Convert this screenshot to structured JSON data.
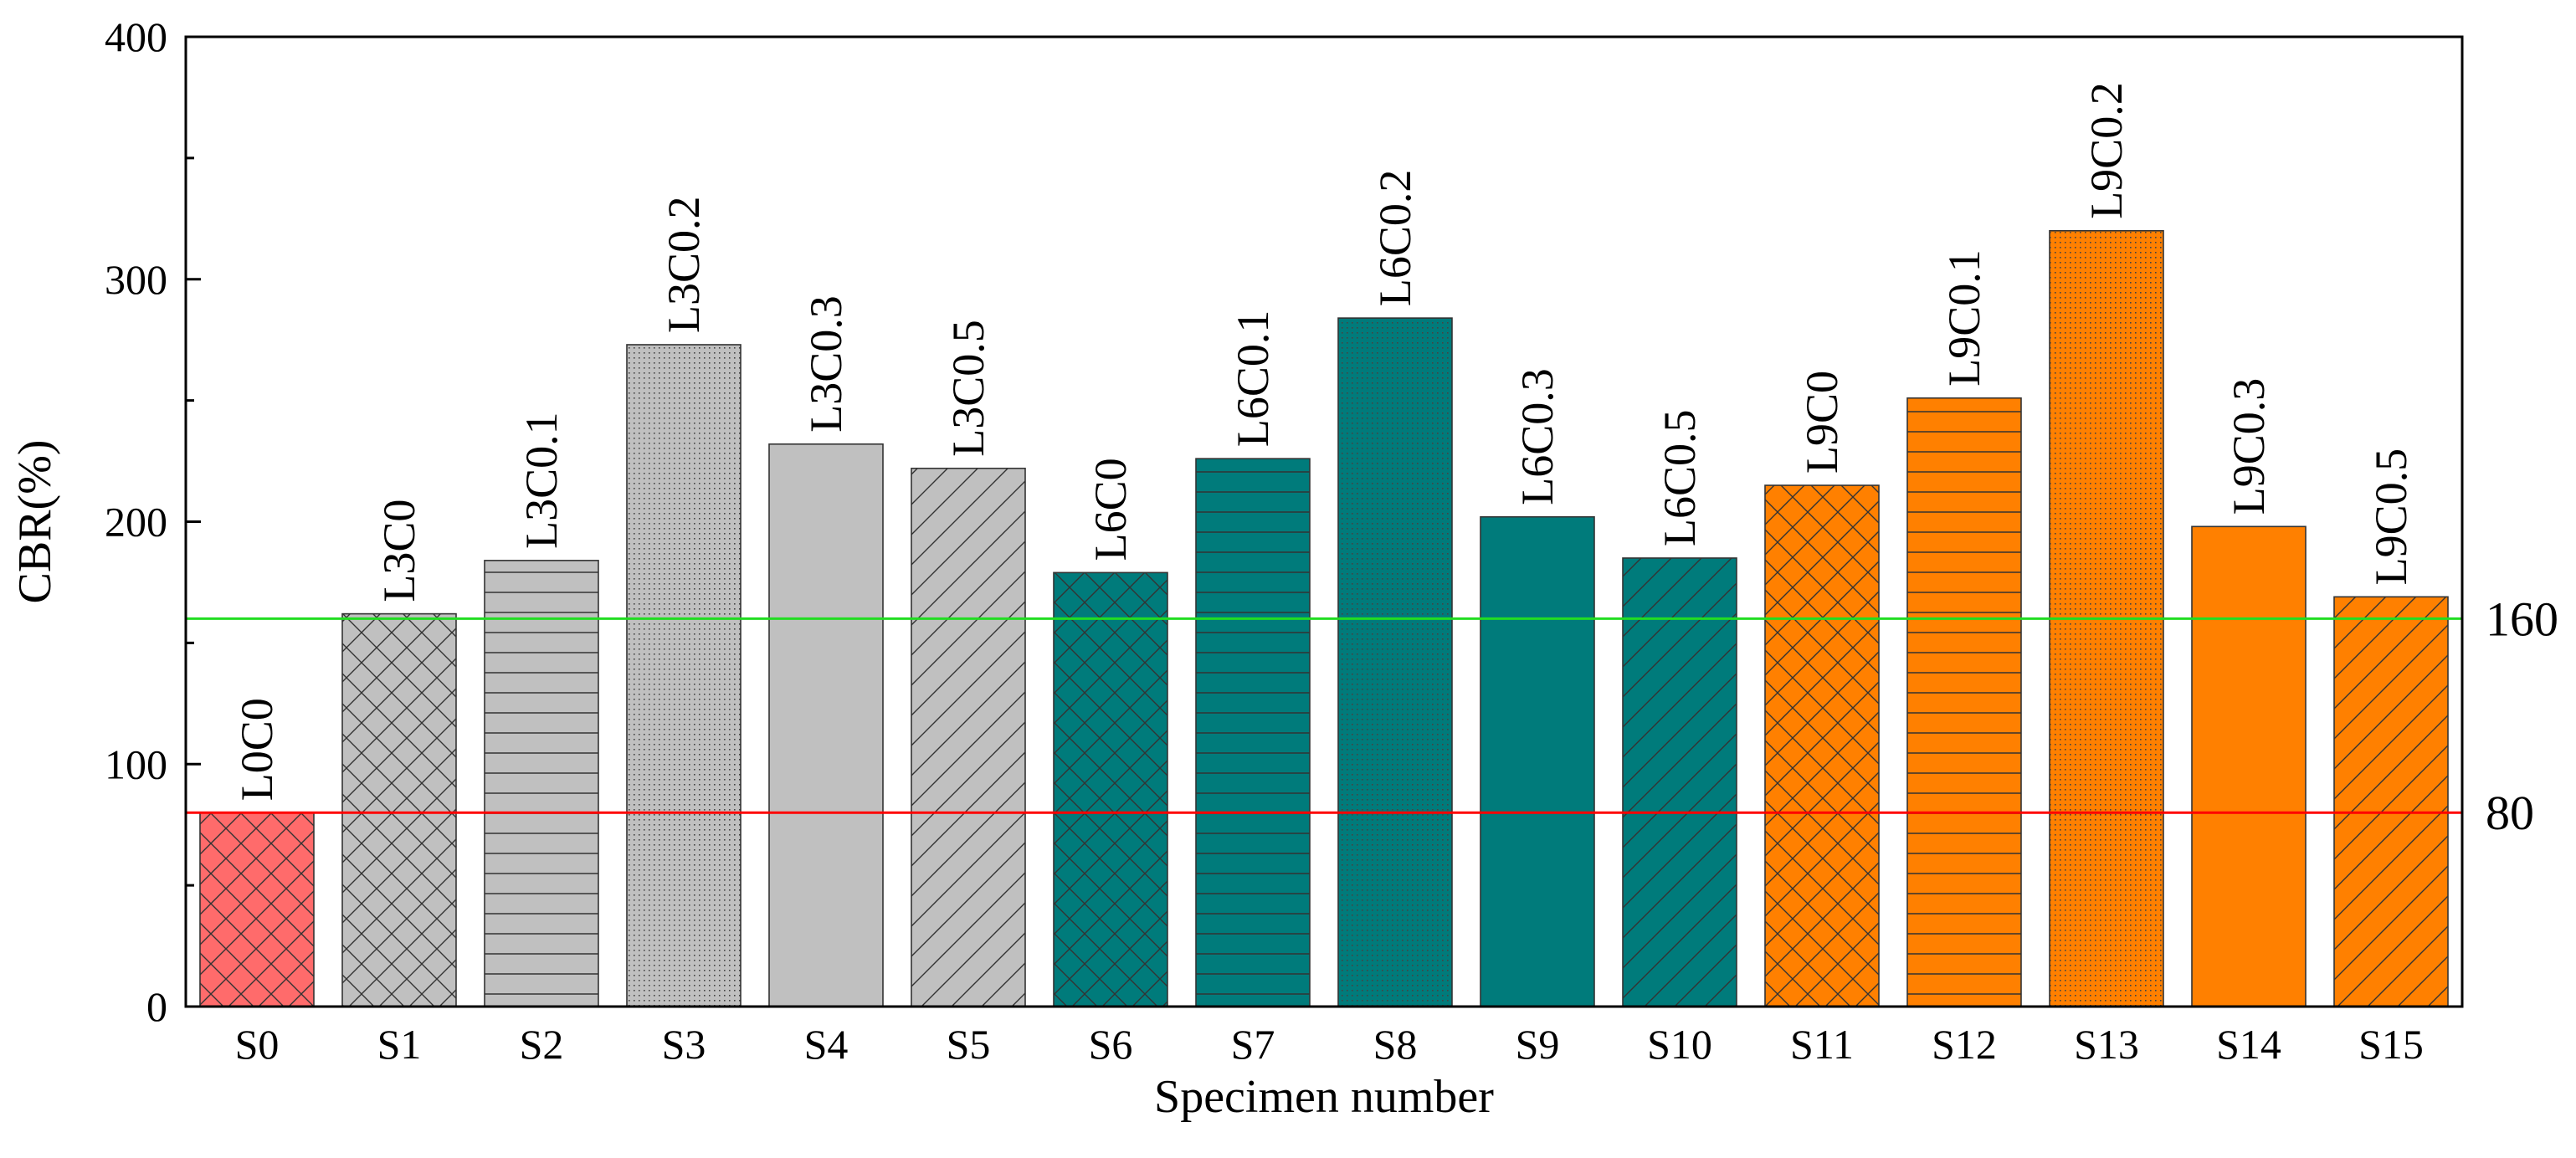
{
  "chart_data": {
    "type": "bar",
    "xlabel": "Specimen number",
    "ylabel": "CBR(%)",
    "ylim": [
      0,
      400
    ],
    "yticks": [
      0,
      100,
      200,
      300,
      400
    ],
    "grid": false,
    "categories": [
      "S0",
      "S1",
      "S2",
      "S3",
      "S4",
      "S5",
      "S6",
      "S7",
      "S8",
      "S9",
      "S10",
      "S11",
      "S12",
      "S13",
      "S14",
      "S15"
    ],
    "bar_labels": [
      "L0C0",
      "L3C0",
      "L3C0.1",
      "L3C0.2",
      "L3C0.3",
      "L3C0.5",
      "L6C0",
      "L6C0.1",
      "L6C0.2",
      "L6C0.3",
      "L6C0.5",
      "L9C0",
      "L9C0.1",
      "L9C0.2",
      "L9C0.3",
      "L9C0.5"
    ],
    "values": [
      80,
      162,
      184,
      273,
      232,
      222,
      179,
      226,
      284,
      202,
      185,
      215,
      251,
      320,
      198,
      169
    ],
    "bar_colors": [
      "#ff6b6b",
      "#c0c0c0",
      "#c0c0c0",
      "#c0c0c0",
      "#c0c0c0",
      "#c0c0c0",
      "#007b7b",
      "#007b7b",
      "#007b7b",
      "#007b7b",
      "#007b7b",
      "#ff8000",
      "#ff8000",
      "#ff8000",
      "#ff8000",
      "#ff8000"
    ],
    "bar_patterns": [
      "crosshatch",
      "crosshatch",
      "horizontal",
      "dots",
      "solid",
      "diagonal",
      "crosshatch",
      "horizontal",
      "dots",
      "solid",
      "diagonal",
      "crosshatch",
      "horizontal",
      "dots",
      "solid",
      "diagonal"
    ],
    "reference_lines": [
      {
        "value": 160,
        "label": "160",
        "color": "#22dd22"
      },
      {
        "value": 80,
        "label": "80",
        "color": "#ff0000"
      }
    ]
  }
}
